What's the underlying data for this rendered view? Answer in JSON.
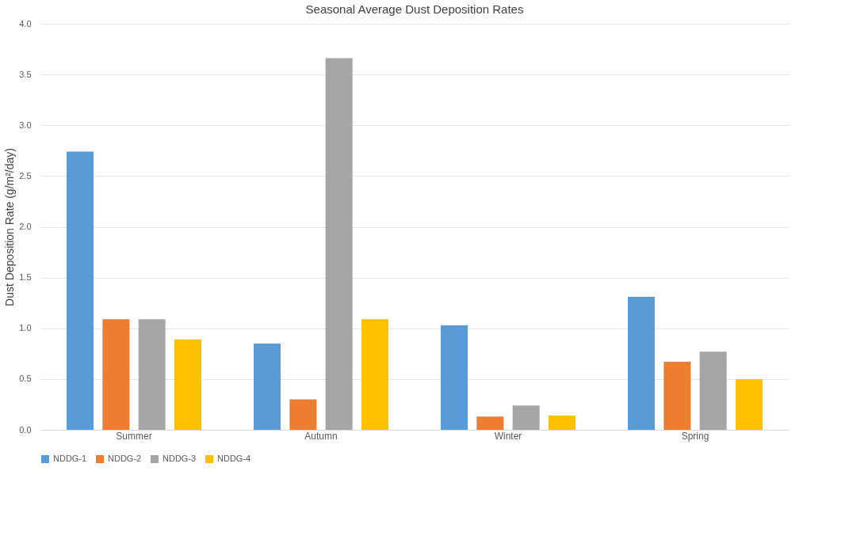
{
  "chart_data": {
    "type": "bar",
    "title": "Seasonal Average Dust Deposition Rates",
    "ylabel": "Dust Deposition Rate (g/m²/day)",
    "categories": [
      "Summer",
      "Autumn",
      "Winter",
      "Spring"
    ],
    "series": [
      {
        "name": "NDDG-1",
        "color": "#5b9bd5",
        "values": [
          2.74,
          0.85,
          1.03,
          1.31
        ]
      },
      {
        "name": "NDDG-2",
        "color": "#ed7d31",
        "values": [
          1.09,
          0.3,
          0.13,
          0.67
        ]
      },
      {
        "name": "NDDG-3",
        "color": "#a5a5a5",
        "values": [
          1.09,
          3.66,
          0.24,
          0.77
        ]
      },
      {
        "name": "NDDG-4",
        "color": "#ffc000",
        "values": [
          0.89,
          1.09,
          0.14,
          0.5
        ]
      }
    ],
    "ylim": [
      0,
      4.0
    ],
    "yticks": [
      {
        "value": 0,
        "label": "0.0"
      },
      {
        "value": 0.5,
        "label": "0.5"
      },
      {
        "value": 1,
        "label": "1.0"
      },
      {
        "value": 1.5,
        "label": "1.5"
      },
      {
        "value": 2,
        "label": "2.0"
      },
      {
        "value": 2.5,
        "label": "2.5"
      },
      {
        "value": 3,
        "label": "3.0"
      },
      {
        "value": 3.5,
        "label": "3.5"
      },
      {
        "value": 4,
        "label": "4.0"
      }
    ],
    "grid": "y",
    "legend": "bottom"
  }
}
